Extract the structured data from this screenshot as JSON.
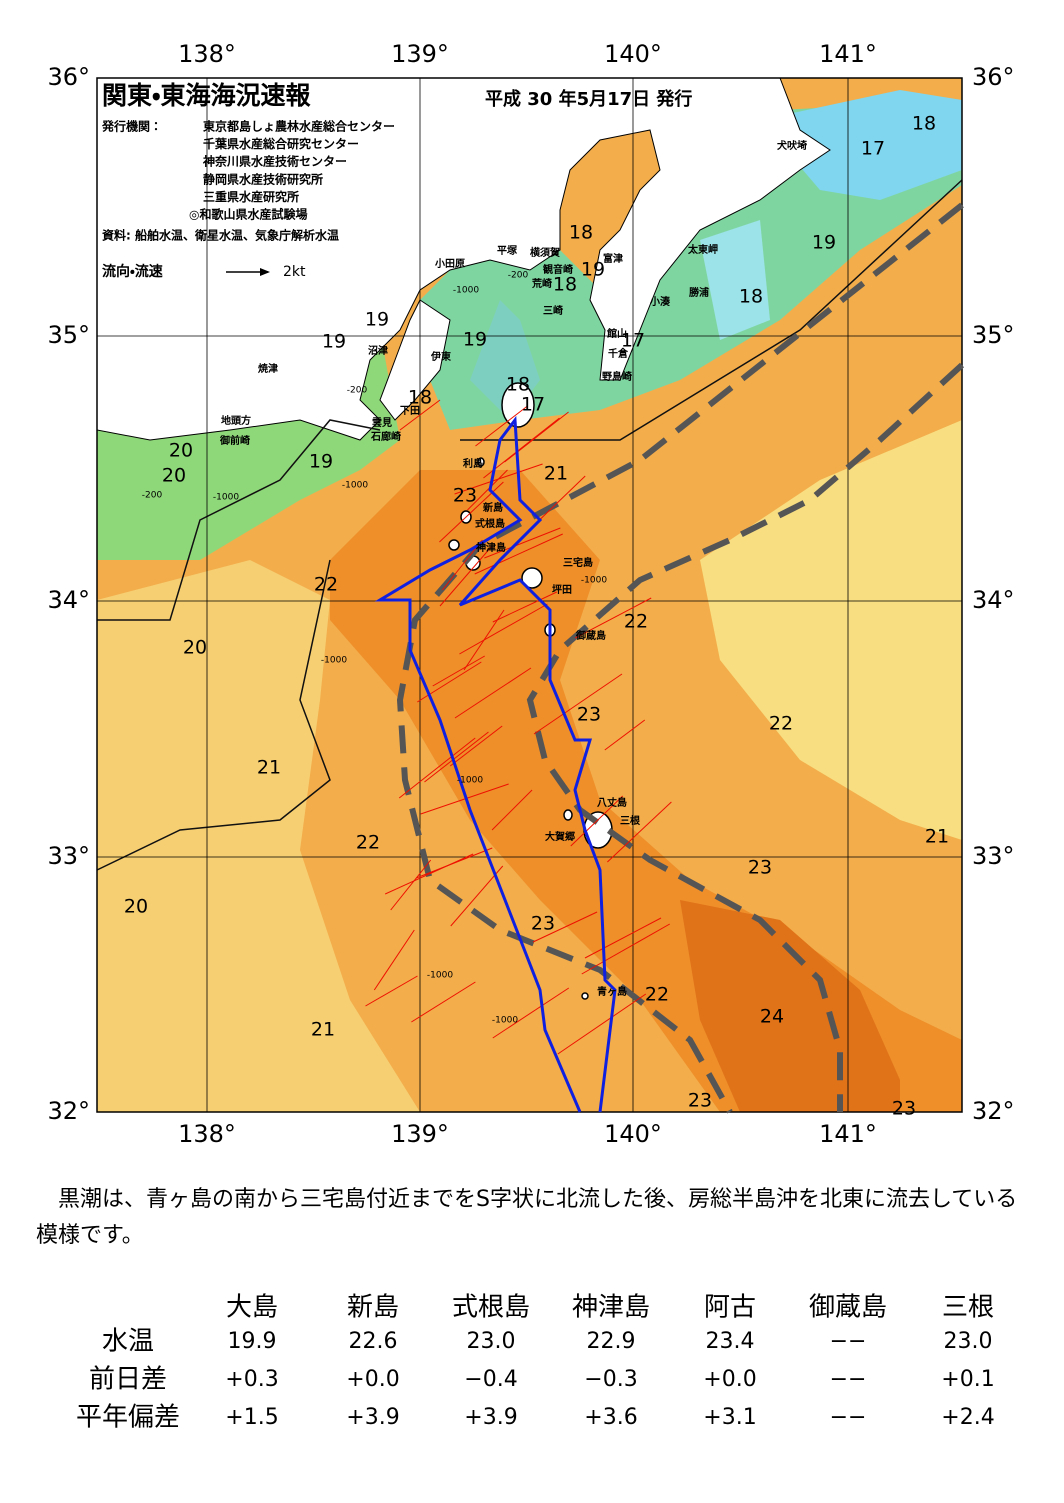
{
  "header": {
    "title": "関東・東海海況速報",
    "date": "平成 30 年5月17日 発行",
    "issuer_label": "発行機関：",
    "issuers": [
      "東京都島しょ農林水産総合センター",
      "千葉県水産総合研究センター",
      "神奈川県水産技術センター",
      "静岡県水産技術研究所",
      "三重県水産研究所",
      "◎和歌山県水産試験場"
    ],
    "source": "資料: 船舶水温、衛星水温、気象庁解析水温",
    "legend_label": "流向・流速",
    "legend_scale": "2kt"
  },
  "map": {
    "lon_labels": [
      "138°",
      "139°",
      "140°",
      "141°"
    ],
    "lat_labels": [
      "36°",
      "35°",
      "34°",
      "33°",
      "32°"
    ],
    "isotherm_labels": [
      18,
      17,
      19,
      18,
      18,
      19,
      18,
      19,
      19,
      19,
      17,
      18,
      18,
      17,
      20,
      20,
      19,
      21,
      23,
      22,
      22,
      20,
      23,
      22,
      21,
      22,
      21,
      23,
      20,
      23,
      22,
      24,
      21,
      23,
      23
    ],
    "depth_labels": [
      "-200",
      "-1000",
      "-200",
      "-1000",
      "-1000",
      "-200",
      "-1000",
      "-1000",
      "-1000",
      "-1000",
      "-1000"
    ],
    "place_names": [
      "犬吠埼",
      "太東岬",
      "勝浦",
      "小湊",
      "富津",
      "横須賀",
      "平塚",
      "観音崎",
      "荒崎",
      "三崎",
      "小田原",
      "館山",
      "千倉",
      "野島崎",
      "沼津",
      "伊東",
      "焼津",
      "下田",
      "雲見",
      "石廊崎",
      "地頭方",
      "御前崎",
      "利島",
      "新島",
      "式根島",
      "神津島",
      "三宅島",
      "坪田",
      "御蔵島",
      "八丈島",
      "三根",
      "大賀郷",
      "青ヶ島"
    ]
  },
  "summary": "　黒潮は、青ヶ島の南から三宅島付近までをS字状に北流した後、房総半島沖を北東に流去している模様です。",
  "table": {
    "columns": [
      "大島",
      "新島",
      "式根島",
      "神津島",
      "阿古",
      "御蔵島",
      "三根"
    ],
    "rows": [
      {
        "label": "水温",
        "values": [
          "19.9",
          "22.6",
          "23.0",
          "22.9",
          "23.4",
          "−−",
          "23.0"
        ]
      },
      {
        "label": "前日差",
        "values": [
          "+0.3",
          "+0.0",
          "−0.4",
          "−0.3",
          "+0.0",
          "−−",
          "+0.1"
        ]
      },
      {
        "label": "平年偏差",
        "values": [
          "+1.5",
          "+3.9",
          "+3.9",
          "+3.6",
          "+3.1",
          "−−",
          "+2.4"
        ]
      }
    ]
  }
}
